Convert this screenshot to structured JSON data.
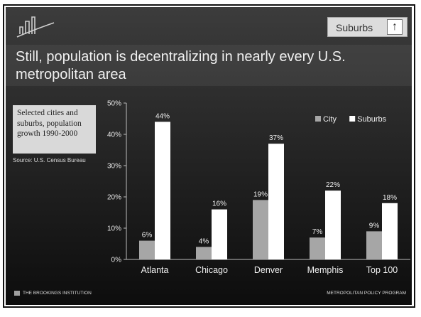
{
  "header": {
    "tag_label": "Suburbs",
    "tag_arrow": "↑",
    "title": "Still, population is decentralizing in nearly every U.S. metropolitan area"
  },
  "note": {
    "text": "Selected cities and suburbs, population growth 1990-2000",
    "source": "Source: U.S. Census Bureau"
  },
  "footer": {
    "left": "THE BROOKINGS INSTITUTION",
    "right": "METROPOLITAN POLICY PROGRAM"
  },
  "colors": {
    "city": "#a6a6a6",
    "suburbs": "#ffffff"
  },
  "chart_data": {
    "type": "bar",
    "categories": [
      "Atlanta",
      "Chicago",
      "Denver",
      "Memphis",
      "Top 100"
    ],
    "series": [
      {
        "name": "City",
        "values": [
          6,
          4,
          19,
          7,
          9
        ],
        "labels": [
          "6%",
          "4%",
          "19%",
          "7%",
          "9%"
        ]
      },
      {
        "name": "Suburbs",
        "values": [
          44,
          16,
          37,
          22,
          18
        ],
        "labels": [
          "44%",
          "16%",
          "37%",
          "22%",
          "18%"
        ]
      }
    ],
    "yticks": [
      "0%",
      "10%",
      "20%",
      "30%",
      "40%",
      "50%"
    ],
    "ylim": [
      0,
      50
    ],
    "legend_position": "top-right",
    "grid": false
  }
}
